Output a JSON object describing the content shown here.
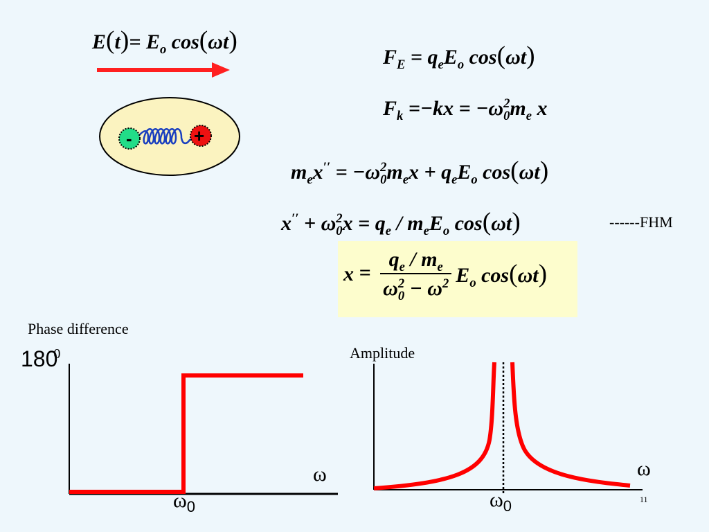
{
  "field_equation": {
    "lhs": "E",
    "t_var": "t",
    "rhs": "E",
    "rhs_sub": "o",
    "cos": "cos",
    "arg": "ωt"
  },
  "forces": {
    "fe": {
      "name": "F",
      "sub": "E",
      "q": "q",
      "q_sub": "e",
      "e": "E",
      "e_sub": "o",
      "cos": "cos",
      "arg": "ωt"
    },
    "fk": {
      "name": "F",
      "sub": "k",
      "mid": "−kx",
      "omega": "ω",
      "omega_sub": "0",
      "omega_sup": "2",
      "m": "m",
      "m_sub": "e",
      "x": "x"
    }
  },
  "motion_equation": {
    "m": "m",
    "m_sub": "e",
    "x": "x",
    "prime": "′′",
    "omega": "ω",
    "omega_sub": "0",
    "omega_sup": "2",
    "q": "q",
    "q_sub": "e",
    "e": "E",
    "e_sub": "o",
    "cos": "cos",
    "arg": "ωt"
  },
  "reduced_equation": {
    "x": "x",
    "prime": "′′",
    "omega": "ω",
    "omega_sub": "0",
    "omega_sup": "2",
    "q": "q",
    "q_sub": "e",
    "m": "m",
    "m_sub": "e",
    "e": "E",
    "e_sub": "o",
    "cos": "cos",
    "arg": "ωt",
    "note": "------FHM"
  },
  "solution": {
    "x": "x",
    "q": "q",
    "q_sub": "e",
    "m": "m",
    "m_sub": "e",
    "omega": "ω",
    "omega0_sub": "0",
    "sup": "2",
    "e": "E",
    "e_sub": "o",
    "cos": "cos",
    "arg": "ωt"
  },
  "dipole": {
    "neg": "-",
    "pos": "+"
  },
  "phase_plot": {
    "title": "Phase difference",
    "y_tick": "180",
    "y_tick_sup": "0",
    "x_axis": "ω",
    "x_tick": "ω",
    "x_tick_sub": "0"
  },
  "amplitude_plot": {
    "title": "Amplitude",
    "x_axis": "ω",
    "x_tick": "ω",
    "x_tick_sub": "0"
  },
  "page_number": "11",
  "colors": {
    "background": "#eef7fc",
    "curve": "#ff0000",
    "arrow": "#ff2020",
    "ellipse_fill": "#fbf3c0",
    "highlight": "#fdfdcd",
    "neg_charge": "#22dd88",
    "pos_charge": "#ee1111",
    "spring": "#1a3fbf"
  }
}
